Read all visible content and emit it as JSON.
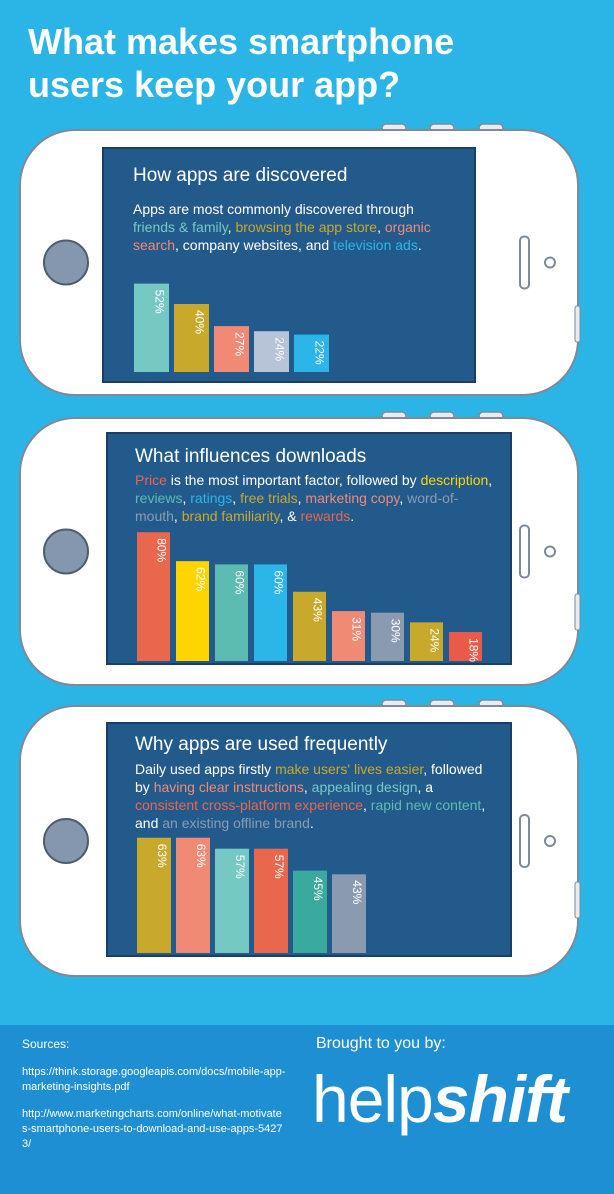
{
  "title": "What makes smartphone users keep your app?",
  "chart_data": [
    {
      "type": "bar",
      "title": "How apps are discovered",
      "description": [
        {
          "text": "Apps are most commonly discovered through ",
          "color": "#ffffff"
        },
        {
          "text": "friends & family",
          "color": "#76c9c3"
        },
        {
          "text": ", ",
          "color": "#ffffff"
        },
        {
          "text": "browsing the app store",
          "color": "#c9a92b"
        },
        {
          "text": ", ",
          "color": "#ffffff"
        },
        {
          "text": "organic search",
          "color": "#f08a75"
        },
        {
          "text": ", company websites, and ",
          "color": "#ffffff"
        },
        {
          "text": "television ads",
          "color": "#2bb5e8"
        },
        {
          "text": ".",
          "color": "#ffffff"
        }
      ],
      "values": [
        52,
        40,
        27,
        24,
        22
      ],
      "value_labels": [
        "52%",
        "40%",
        "27%",
        "24%",
        "22%"
      ],
      "colors": [
        "#76c9c3",
        "#c9a92b",
        "#f08a75",
        "#b7c3d6",
        "#2bb5e8"
      ]
    },
    {
      "type": "bar",
      "title": "What influences downloads",
      "description": [
        {
          "text": "Price",
          "color": "#e8674d"
        },
        {
          "text": " is the most important factor, followed by ",
          "color": "#ffffff"
        },
        {
          "text": "description",
          "color": "#ffd500"
        },
        {
          "text": ", ",
          "color": "#ffffff"
        },
        {
          "text": "reviews",
          "color": "#5cbcb2"
        },
        {
          "text": ", ",
          "color": "#ffffff"
        },
        {
          "text": "ratings",
          "color": "#2bb5e8"
        },
        {
          "text": ", ",
          "color": "#ffffff"
        },
        {
          "text": "free trials",
          "color": "#c9a92b"
        },
        {
          "text": ", ",
          "color": "#ffffff"
        },
        {
          "text": "marketing copy",
          "color": "#f08a75"
        },
        {
          "text": ", ",
          "color": "#ffffff"
        },
        {
          "text": "word-of-mouth",
          "color": "#8a9bb0"
        },
        {
          "text": ", ",
          "color": "#ffffff"
        },
        {
          "text": "brand familiarity",
          "color": "#c9a92b"
        },
        {
          "text": ", & ",
          "color": "#ffffff"
        },
        {
          "text": "rewards",
          "color": "#e8674d"
        },
        {
          "text": ".",
          "color": "#ffffff"
        }
      ],
      "values": [
        80,
        62,
        60,
        60,
        43,
        31,
        30,
        24,
        18
      ],
      "value_labels": [
        "80%",
        "62%",
        "60%",
        "60%",
        "43%",
        "31%",
        "30%",
        "24%",
        "18%"
      ],
      "colors": [
        "#e8674d",
        "#ffd500",
        "#5cbcb2",
        "#2bb5e8",
        "#c9a92b",
        "#f08a75",
        "#8a9bb0",
        "#c9a92b",
        "#e85a4a"
      ]
    },
    {
      "type": "bar",
      "title": "Why apps are used frequently",
      "description": [
        {
          "text": "Daily used apps firstly ",
          "color": "#ffffff"
        },
        {
          "text": "make users' lives easier",
          "color": "#c9a92b"
        },
        {
          "text": ", followed by ",
          "color": "#ffffff"
        },
        {
          "text": "having clear instructions",
          "color": "#f08a75"
        },
        {
          "text": ", ",
          "color": "#ffffff"
        },
        {
          "text": "appealing design",
          "color": "#76c9c3"
        },
        {
          "text": ", a ",
          "color": "#ffffff"
        },
        {
          "text": "consistent cross-platform experience",
          "color": "#e8674d"
        },
        {
          "text": ", ",
          "color": "#ffffff"
        },
        {
          "text": "rapid new content",
          "color": "#5cbcb2"
        },
        {
          "text": ", and ",
          "color": "#ffffff"
        },
        {
          "text": "an existing offline brand",
          "color": "#8a9bb0"
        },
        {
          "text": ".",
          "color": "#ffffff"
        }
      ],
      "values": [
        63,
        63,
        57,
        57,
        45,
        43
      ],
      "value_labels": [
        "63%",
        "63%",
        "57%",
        "57%",
        "45%",
        "43%"
      ],
      "colors": [
        "#c9a92b",
        "#f08a75",
        "#76c9c3",
        "#e8674d",
        "#3aa99e",
        "#8a9bb0"
      ]
    }
  ],
  "footer": {
    "sources_label": "Sources:",
    "sources": [
      "https://think.storage.googleapis.com/docs/mobile-app-marketing-insights.pdf",
      "http://www.marketingcharts.com/online/what-motivates-smartphone-users-to-download-and-use-apps-54273/"
    ],
    "credit": "Brought to you by:",
    "brand_light": "help",
    "brand_bold": "shift"
  }
}
